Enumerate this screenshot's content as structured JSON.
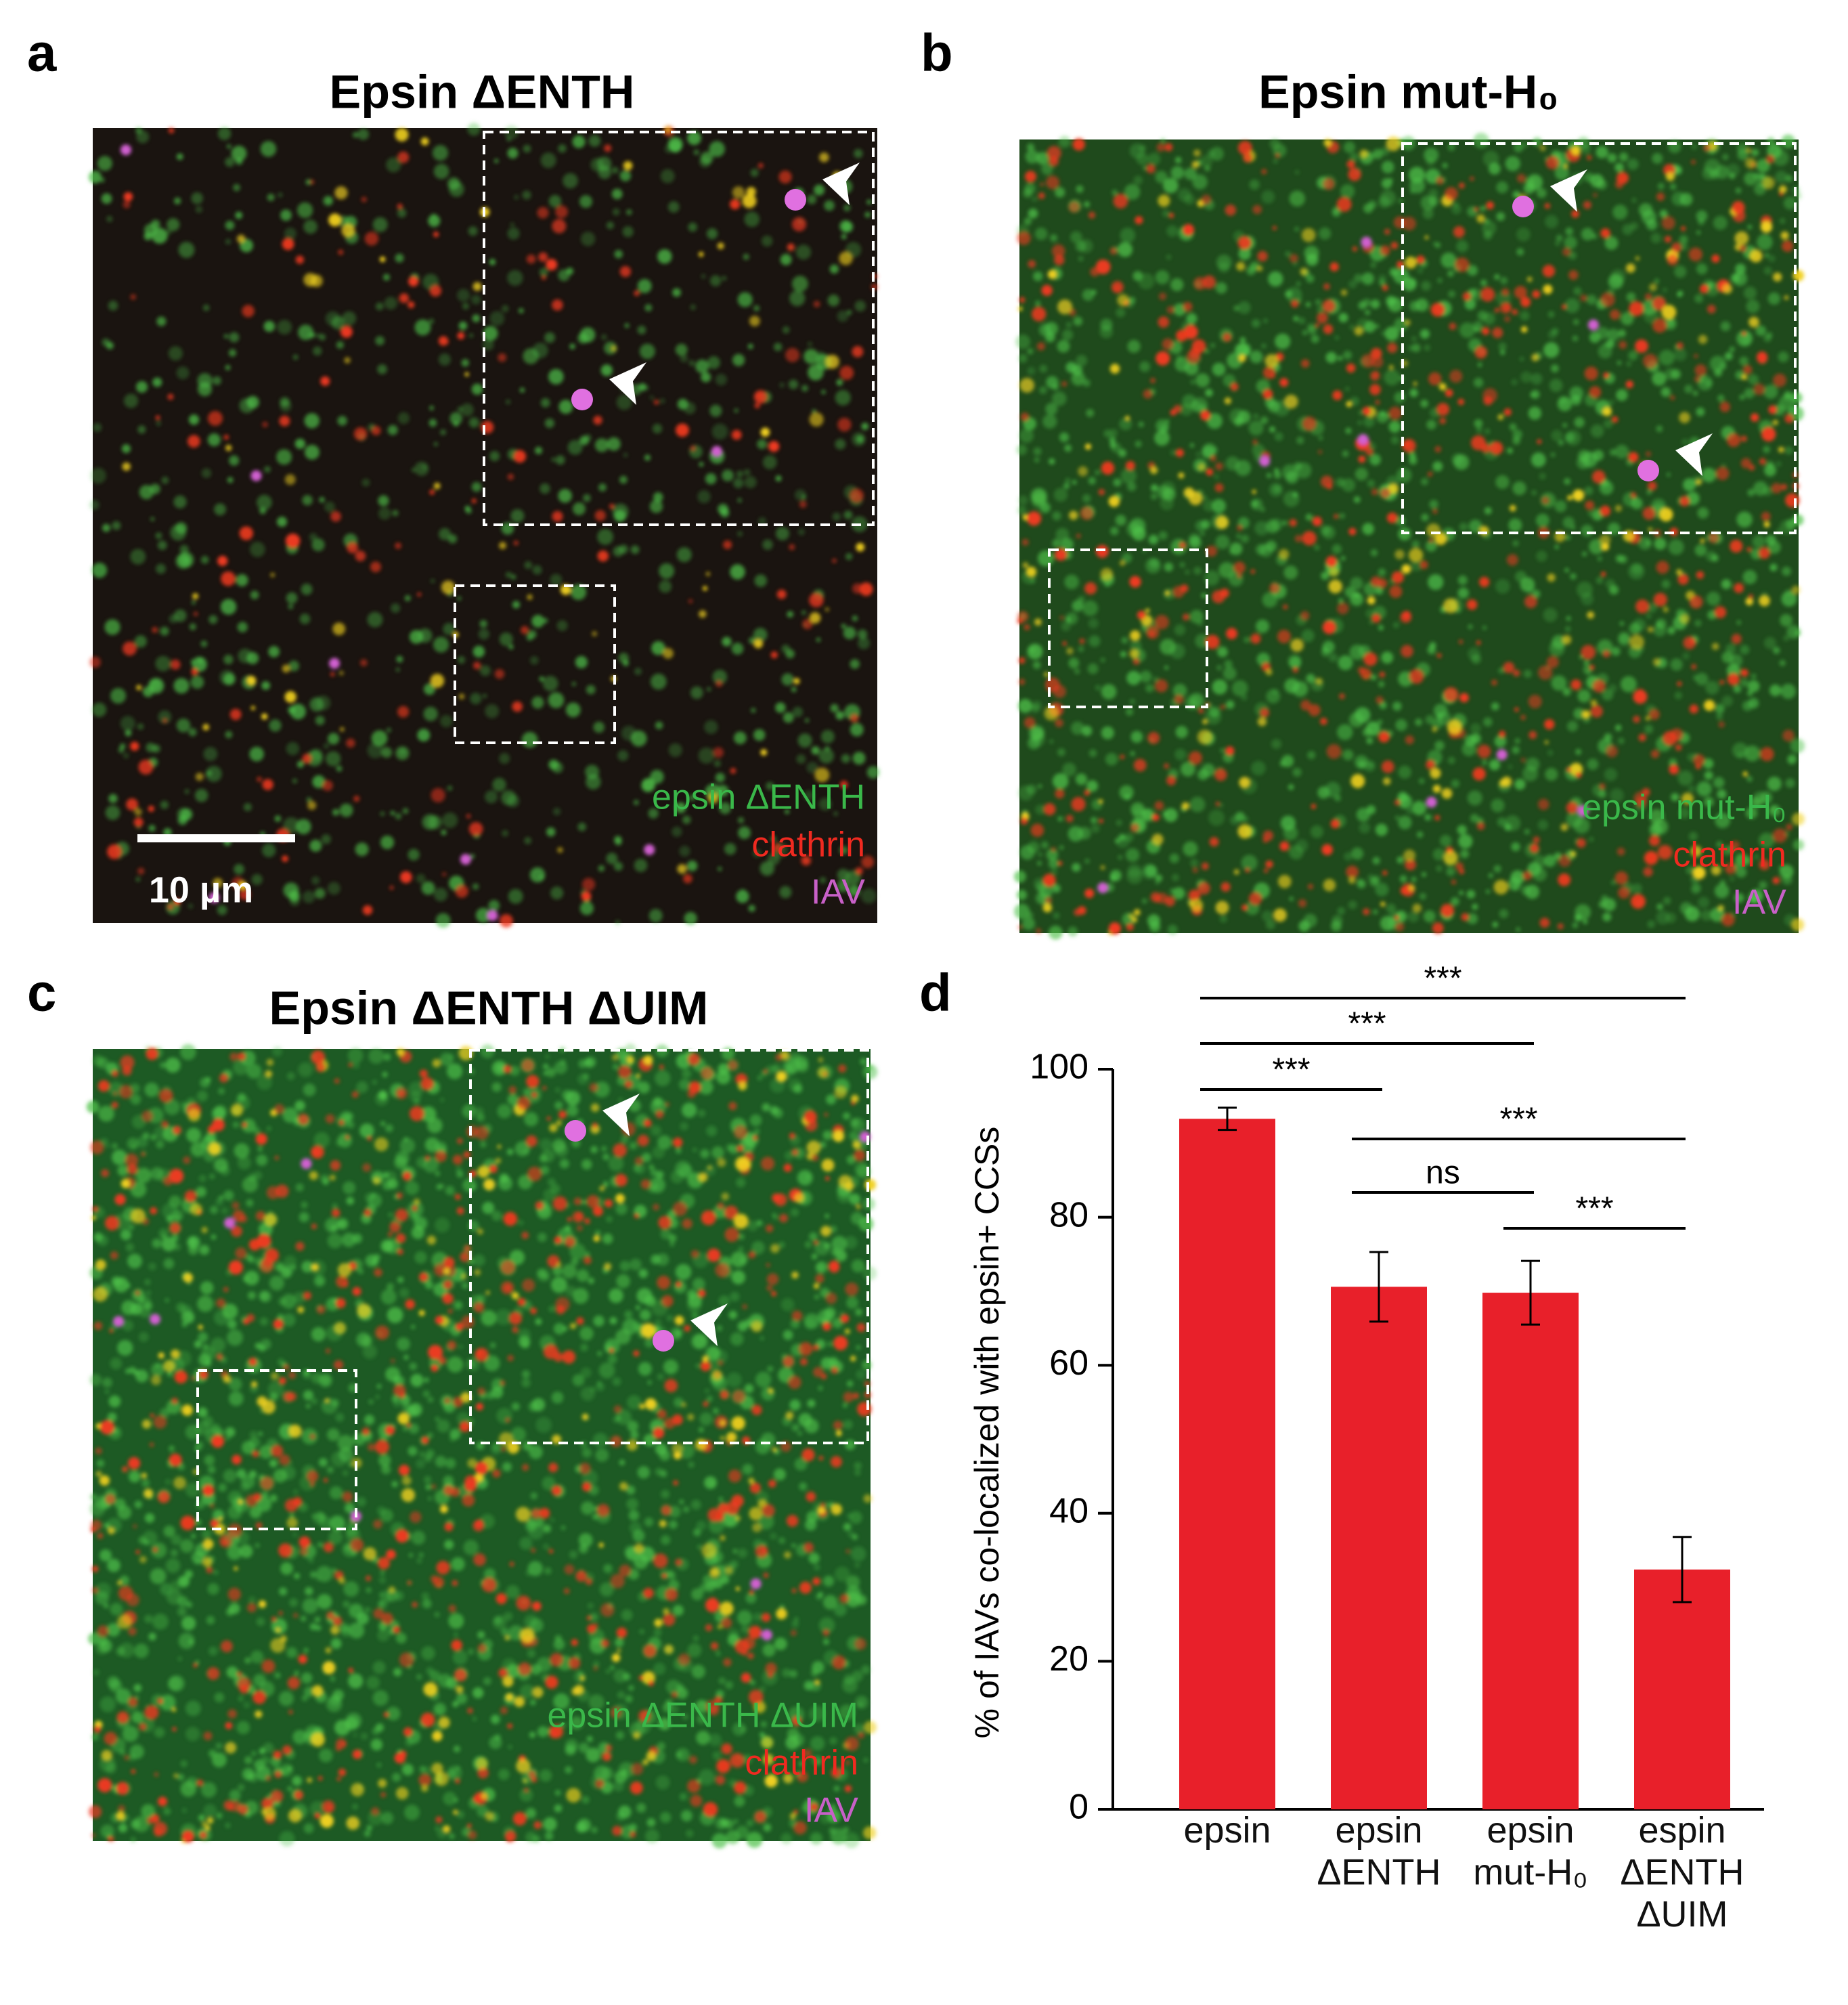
{
  "panels": [
    {
      "letter": "a",
      "title": "Epsin ΔENTH",
      "legend": [
        "epsin ΔENTH",
        "clathrin",
        "IAV"
      ],
      "scale_bar": "10 µm"
    },
    {
      "letter": "b",
      "title": "Epsin mut-H₀",
      "legend": [
        "epsin mut-H₀",
        "clathrin",
        "IAV"
      ]
    },
    {
      "letter": "c",
      "title": "Epsin ΔENTH ΔUIM",
      "legend": [
        "epsin ΔENTH ΔUIM",
        "clathrin",
        "IAV"
      ]
    }
  ],
  "chart_data": {
    "type": "bar",
    "letter": "d",
    "y_label": "% of IAVs co-localized with epsin+ CCSs",
    "categories": [
      "epsin",
      "epsin\nΔENTH",
      "epsin\nmut-H₀",
      "espin\nΔENTH\nΔUIM"
    ],
    "values": [
      93.3,
      70.6,
      69.8,
      32.4
    ],
    "errors": [
      1.5,
      4.7,
      4.3,
      4.4
    ],
    "color": "#e8202a",
    "ylim": [
      0,
      100
    ],
    "yticks": [
      0,
      20,
      40,
      60,
      80,
      100
    ],
    "comparisons": [
      {
        "pair": [
          0,
          3
        ],
        "label": "***"
      },
      {
        "pair": [
          0,
          2
        ],
        "label": "***"
      },
      {
        "pair": [
          0,
          1
        ],
        "label": "***"
      },
      {
        "pair": [
          1,
          3
        ],
        "label": "***"
      },
      {
        "pair": [
          1,
          2
        ],
        "label": "ns"
      },
      {
        "pair": [
          2,
          3
        ],
        "label": "***"
      }
    ]
  }
}
